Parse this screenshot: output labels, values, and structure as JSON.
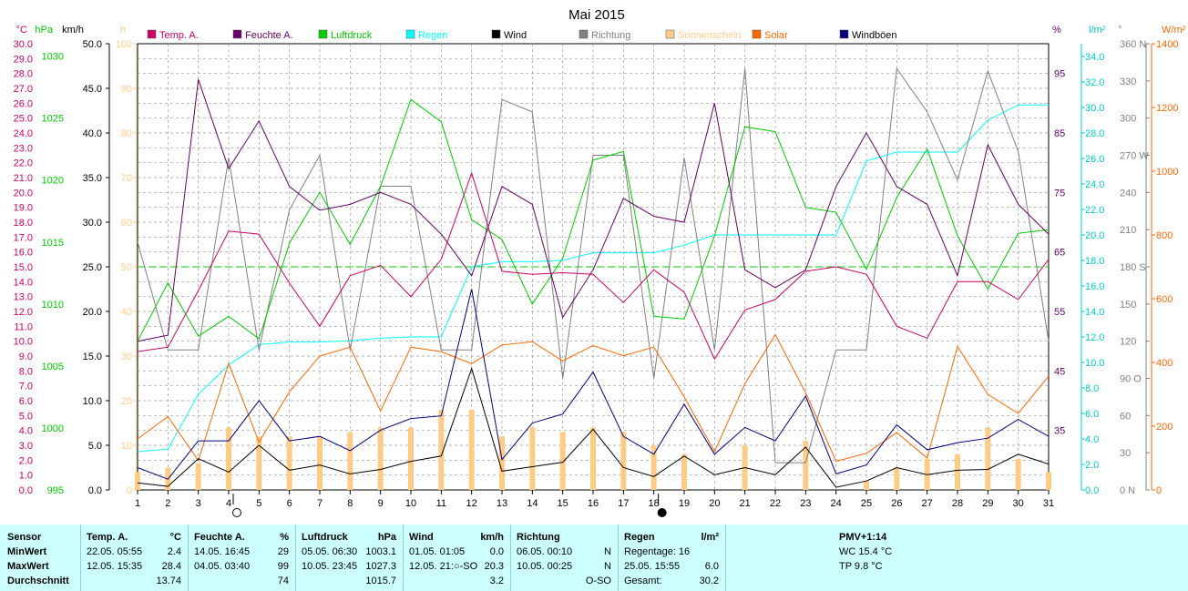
{
  "chart_data": {
    "type": "line",
    "title": "Mai 2015",
    "x": [
      1,
      2,
      3,
      4,
      5,
      6,
      7,
      8,
      9,
      10,
      11,
      12,
      13,
      14,
      15,
      16,
      17,
      18,
      19,
      20,
      21,
      22,
      23,
      24,
      25,
      26,
      27,
      28,
      29,
      30,
      31
    ],
    "axes": {
      "temp": {
        "unit": "°C",
        "ticks": [
          "0.0",
          "1.0",
          "2.0",
          "3.0",
          "4.0",
          "5.0",
          "6.0",
          "7.0",
          "8.0",
          "9.0",
          "10.0",
          "11.0",
          "12.0",
          "13.0",
          "14.0",
          "15.0",
          "16.0",
          "17.0",
          "18.0",
          "19.0",
          "20.0",
          "21.0",
          "22.0",
          "23.0",
          "24.0",
          "25.0",
          "26.0",
          "27.0",
          "28.0",
          "29.0",
          "30.0"
        ],
        "range": [
          0,
          30
        ],
        "color": "#cc0066"
      },
      "pressure": {
        "unit": "hPa",
        "ticks": [
          "995",
          "1000",
          "1005",
          "1010",
          "1015",
          "1020",
          "1025",
          "1030"
        ],
        "range": [
          995,
          1031
        ],
        "color": "#00cc00"
      },
      "wind": {
        "unit": "km/h",
        "ticks": [
          "0.0",
          "5.0",
          "10.0",
          "15.0",
          "20.0",
          "25.0",
          "30.0",
          "35.0",
          "40.0",
          "45.0",
          "50.0"
        ],
        "range": [
          0,
          50
        ],
        "color": "#000000"
      },
      "sun": {
        "unit": "h",
        "ticks": [
          "0",
          "10",
          "20",
          "30",
          "40",
          "50",
          "60",
          "70",
          "80",
          "90",
          "100"
        ],
        "range": [
          0,
          100
        ],
        "color": "#ffcc88"
      },
      "humidity": {
        "unit": "%",
        "ticks": [
          "35",
          "45",
          "55",
          "65",
          "75",
          "85",
          "95"
        ],
        "range": [
          25,
          100
        ],
        "color": "#660066"
      },
      "rain": {
        "unit": "l/m²",
        "ticks": [
          "0.0",
          "2.0",
          "4.0",
          "6.0",
          "8.0",
          "10.0",
          "12.0",
          "14.0",
          "16.0",
          "18.0",
          "20.0",
          "22.0",
          "24.0",
          "26.0",
          "28.0",
          "30.0",
          "32.0",
          "34.0"
        ],
        "range": [
          0,
          35
        ],
        "color": "#00cccc"
      },
      "direction": {
        "unit": "°",
        "ticks": [
          "0 N",
          "30",
          "60",
          "90 O",
          "120",
          "150",
          "180 S",
          "210",
          "240",
          "270 W",
          "300",
          "330",
          "360 N"
        ],
        "range": [
          0,
          360
        ],
        "color": "#808080"
      },
      "solar": {
        "unit": "W/m²",
        "ticks": [
          "0",
          "200",
          "400",
          "600",
          "800",
          "1000",
          "1200",
          "1400"
        ],
        "range": [
          0,
          1400
        ],
        "color": "#ff6600"
      }
    },
    "reference_line": {
      "axis": "temp",
      "value": 15.0,
      "color": "#00cc00"
    },
    "series": [
      {
        "name": "Temp. A.",
        "axis": "temp",
        "color": "#cc0066",
        "values": [
          9.3,
          9.6,
          13.4,
          17.4,
          17.2,
          13.9,
          11.0,
          14.4,
          15.1,
          13.0,
          15.5,
          21.3,
          14.7,
          14.5,
          14.6,
          14.5,
          12.6,
          14.8,
          13.3,
          8.8,
          12.1,
          12.8,
          14.7,
          15.0,
          14.5,
          11.0,
          10.2,
          14.0,
          14.0,
          12.8,
          15.5
        ]
      },
      {
        "name": "Feuchte A.",
        "axis": "humidity",
        "color": "#660066",
        "values": [
          50,
          51,
          94,
          79,
          87,
          76,
          72,
          73,
          75,
          73,
          68,
          61,
          76,
          73,
          54,
          62,
          74,
          71,
          70,
          90,
          62,
          59,
          62,
          76,
          85,
          76,
          73,
          61,
          83,
          73,
          68
        ]
      },
      {
        "name": "Luftdruck",
        "axis": "pressure",
        "color": "#00cc00",
        "values": [
          1007.0,
          1011.7,
          1007.4,
          1009.0,
          1007.2,
          1014.9,
          1019.0,
          1014.8,
          1019.5,
          1026.5,
          1024.7,
          1016.8,
          1015.2,
          1010.0,
          1013.7,
          1021.6,
          1022.3,
          1009.0,
          1008.8,
          1015.5,
          1024.3,
          1023.9,
          1017.8,
          1017.4,
          1012.8,
          1018.6,
          1022.5,
          1015.5,
          1011.2,
          1015.7,
          1016.0
        ]
      },
      {
        "name": "Regen",
        "axis": "rain",
        "color": "#00ffff",
        "values": [
          3.0,
          3.2,
          7.5,
          9.8,
          11.4,
          11.6,
          11.6,
          11.7,
          11.9,
          12.0,
          12.0,
          17.5,
          17.9,
          17.9,
          18.0,
          18.6,
          18.6,
          18.6,
          19.2,
          20.0,
          20.0,
          20.0,
          20.0,
          20.0,
          25.8,
          26.5,
          26.5,
          26.5,
          29.0,
          30.2,
          30.2
        ]
      },
      {
        "name": "Wind",
        "axis": "wind",
        "color": "#000000",
        "values": [
          0.8,
          0.4,
          3.5,
          2.0,
          5.0,
          2.2,
          2.8,
          1.8,
          2.3,
          3.2,
          3.8,
          13.6,
          2.1,
          2.6,
          3.1,
          6.8,
          2.5,
          1.5,
          3.8,
          1.7,
          2.5,
          1.7,
          4.8,
          0.3,
          1.0,
          2.5,
          1.7,
          2.2,
          2.3,
          4.0,
          2.9
        ]
      },
      {
        "name": "Richtung",
        "axis": "direction",
        "color": "#808080",
        "values": [
          200,
          113,
          113,
          268,
          113,
          226,
          270,
          113,
          245,
          245,
          113,
          113,
          315,
          305,
          90,
          270,
          270,
          90,
          268,
          113,
          340,
          22,
          22,
          113,
          113,
          340,
          305,
          250,
          338,
          273,
          120
        ]
      },
      {
        "name": "Sonnenschein",
        "axis": "sun",
        "color": "#ffcc88",
        "type": "bar",
        "values": [
          4,
          5,
          6,
          14,
          12,
          12,
          12,
          13,
          14,
          14,
          18,
          18,
          12,
          14,
          13,
          14,
          13,
          10,
          8,
          0,
          10,
          0,
          11,
          0,
          2,
          5,
          7,
          8,
          14,
          7,
          4
        ]
      },
      {
        "name": "Solar",
        "axis": "solar",
        "color": "#ff6600",
        "values": [
          160,
          230,
          92,
          397,
          150,
          308,
          420,
          448,
          248,
          448,
          434,
          396,
          455,
          465,
          405,
          453,
          421,
          448,
          292,
          120,
          333,
          487,
          305,
          90,
          115,
          180,
          100,
          450,
          300,
          240,
          357
        ]
      },
      {
        "name": "Windböen",
        "axis": "wind",
        "color": "#000080",
        "values": [
          2.5,
          1.2,
          5.5,
          5.5,
          10.0,
          5.5,
          6.0,
          4.4,
          6.7,
          8.0,
          8.3,
          22.5,
          3.4,
          7.5,
          8.5,
          13.2,
          6.0,
          4.0,
          9.6,
          4.0,
          7.0,
          5.5,
          10.5,
          1.8,
          2.8,
          7.3,
          4.5,
          5.3,
          5.8,
          7.9,
          6.0
        ]
      }
    ],
    "moon_markers": [
      {
        "day": 4,
        "phase": "full"
      },
      {
        "day": 18,
        "phase": "new"
      }
    ],
    "grid": true
  },
  "stats": {
    "sensor": {
      "h1": "Sensor",
      "r1": "MinWert",
      "r2": "MaxWert",
      "r3": "Durchschnitt"
    },
    "temp": {
      "h1": "Temp. A.",
      "h2": "°C",
      "min_time": "22.05.  05:55",
      "min_val": "2.4",
      "max_time": "12.05.  15:35",
      "max_val": "28.4",
      "avg": "13.74"
    },
    "hum": {
      "h1": "Feuchte A.",
      "h2": "%",
      "min_time": "14.05.  16:45",
      "min_val": "29",
      "max_time": "04.05.  03:40",
      "max_val": "99",
      "avg": "74"
    },
    "press": {
      "h1": "Luftdruck",
      "h2": "hPa",
      "min_time": "05.05.  06:30",
      "min_val": "1003.1",
      "max_time": "10.05.  23:45",
      "max_val": "1027.3",
      "avg": "1015.7"
    },
    "wind": {
      "h1": "Wind",
      "h2": "km/h",
      "min_time": "01.05.  01:05",
      "min_val": "0.0",
      "max_time": "12.05.  21:○-SO",
      "max_val": "20.3",
      "avg": "3.2"
    },
    "dir": {
      "h1": "Richtung",
      "min_time": "06.05.  00:10",
      "min_val": "N",
      "max_time": "10.05.  00:25",
      "max_val": "N",
      "avg": "O-SO"
    },
    "rain": {
      "h1": "Regen",
      "h2": "l/m²",
      "r1": "Regentage: 16",
      "r2a": "25.05.  15:55",
      "r2b": "6.0",
      "r3a": "Gesamt:",
      "r3b": "30.2"
    },
    "pmv": {
      "h1": "PMV+1:14",
      "r1": "WC 15.4 °C",
      "r2": "TP 9.8 °C"
    }
  }
}
